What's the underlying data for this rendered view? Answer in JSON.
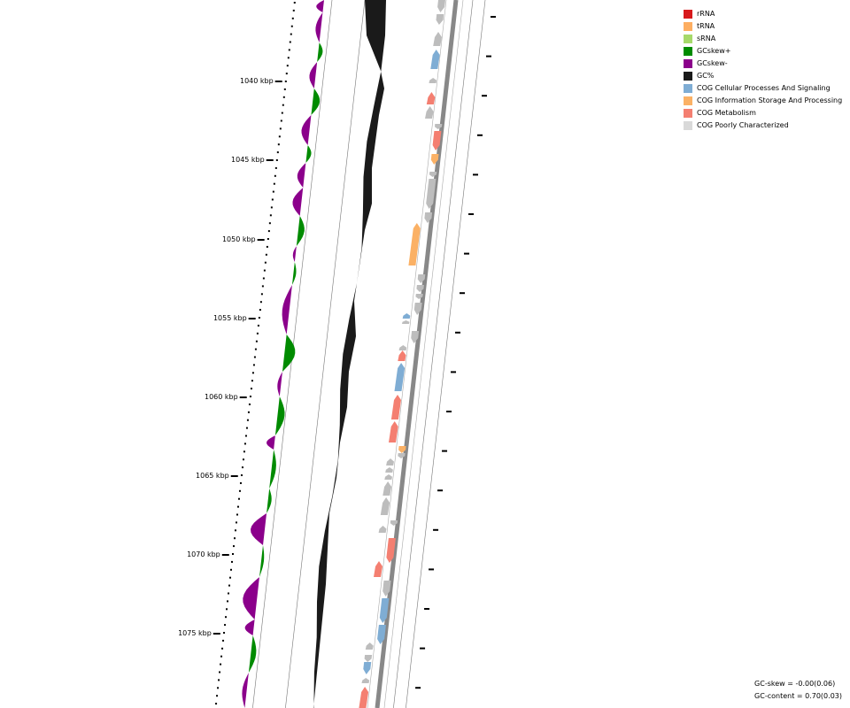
{
  "ticks": [
    {
      "label": "1040 kbp"
    },
    {
      "label": "1045 kbp"
    },
    {
      "label": "1050 kbp"
    },
    {
      "label": "1055 kbp"
    },
    {
      "label": "1060 kbp"
    },
    {
      "label": "1065 kbp"
    },
    {
      "label": "1070 kbp"
    },
    {
      "label": "1075 kbp"
    }
  ],
  "legend": [
    {
      "label": "rRNA",
      "color": "#d7191c"
    },
    {
      "label": "tRNA",
      "color": "#fdae61"
    },
    {
      "label": "sRNA",
      "color": "#a6d96a"
    },
    {
      "label": "GCskew+",
      "color": "#008b00"
    },
    {
      "label": "GCskew-",
      "color": "#8b008b"
    },
    {
      "label": "GC%",
      "color": "#1a1a1a"
    },
    {
      "label": "COG Cellular Processes And Signaling",
      "color": "#7fadd4"
    },
    {
      "label": "COG Information Storage And Processing",
      "color": "#fbb165"
    },
    {
      "label": "COG Metabolism",
      "color": "#f47f71"
    },
    {
      "label": "COG Poorly Characterized",
      "color": "#d9d9d9"
    }
  ],
  "stats": {
    "gc_skew": "GC-skew = -0.00(0.06)",
    "gc_content": "GC-content = 0.70(0.03)"
  }
}
